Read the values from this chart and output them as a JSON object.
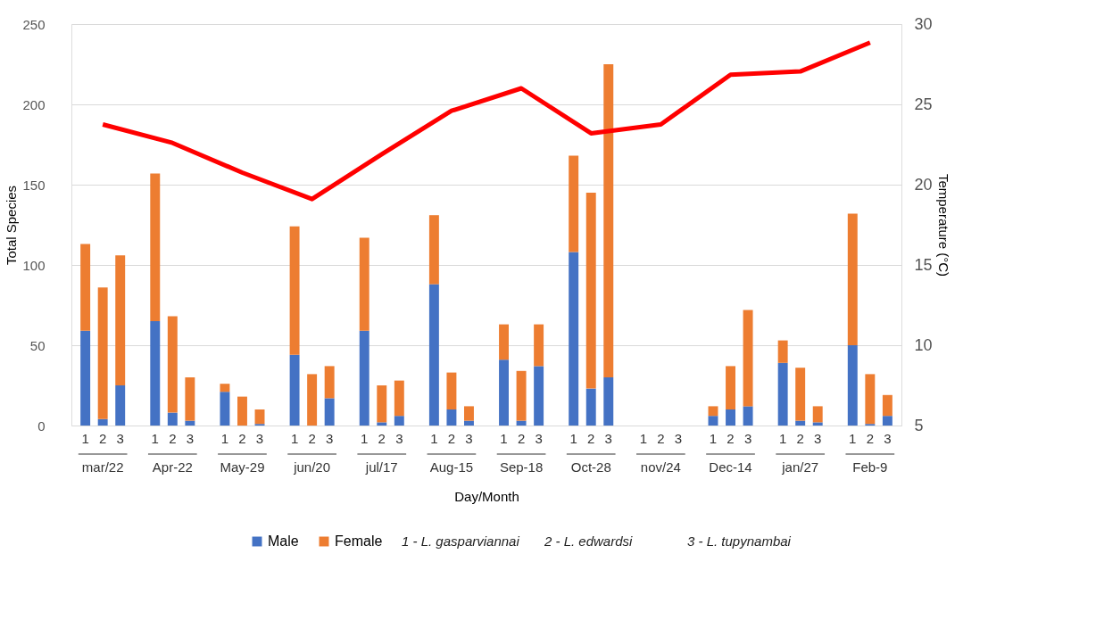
{
  "chart_data": {
    "type": "bar",
    "stacked": true,
    "categories": [
      "1",
      "2",
      "3",
      "1",
      "2",
      "3",
      "1",
      "2",
      "3",
      "1",
      "2",
      "3",
      "1",
      "2",
      "3",
      "1",
      "2",
      "3",
      "1",
      "2",
      "3",
      "1",
      "2",
      "3",
      "1",
      "2",
      "3",
      "1",
      "2",
      "3",
      "1",
      "2",
      "3",
      "1",
      "2",
      "3"
    ],
    "series": [
      {
        "name": "Male",
        "color": "#4472c4",
        "values": [
          59,
          4,
          25,
          65,
          8,
          3,
          21,
          0,
          1,
          44,
          0,
          17,
          59,
          2,
          6,
          88,
          10,
          3,
          41,
          3,
          37,
          108,
          23,
          30,
          null,
          null,
          null,
          6,
          10,
          12,
          39,
          3,
          2,
          50,
          1,
          6
        ]
      },
      {
        "name": "Female",
        "color": "#ed7d31",
        "values": [
          54,
          82,
          81,
          92,
          60,
          27,
          5,
          18,
          9,
          80,
          32,
          20,
          58,
          23,
          22,
          43,
          23,
          9,
          22,
          31,
          26,
          60,
          122,
          195,
          null,
          null,
          null,
          6,
          27,
          60,
          14,
          33,
          10,
          82,
          31,
          13
        ]
      },
      {
        "type": "line",
        "axis": "y2",
        "color": "#ff0000",
        "values": [
          null,
          23.75,
          null,
          null,
          22.6,
          null,
          null,
          20.75,
          null,
          null,
          19.1,
          null,
          null,
          21.9,
          null,
          null,
          24.6,
          null,
          null,
          26.0,
          null,
          null,
          23.2,
          null,
          null,
          23.75,
          null,
          null,
          26.85,
          null,
          null,
          27.05,
          null,
          null,
          28.85,
          null
        ]
      }
    ],
    "xlabel": "Day/Month",
    "ylabel": "Total Species",
    "y2label": "Temperature (°C)",
    "ylim": [
      0,
      250
    ],
    "yticks": [
      0,
      50,
      100,
      150,
      200,
      250
    ],
    "y2lim": [
      5,
      30
    ],
    "y2ticks": [
      5,
      10,
      15,
      20,
      25,
      30
    ],
    "grid": "y",
    "legend": "bottom",
    "annotations": [
      "mar/22",
      "Apr-22",
      "May-29",
      "jun/20",
      "jul/17",
      "Aug-15",
      "Sep-18",
      "Oct-28",
      "nov/24",
      "Dec-14",
      "jan/27",
      "Feb-9",
      "1 - L. gasparviannai",
      "2 - L. edwardsi",
      "3 - L. tupynambai"
    ]
  }
}
